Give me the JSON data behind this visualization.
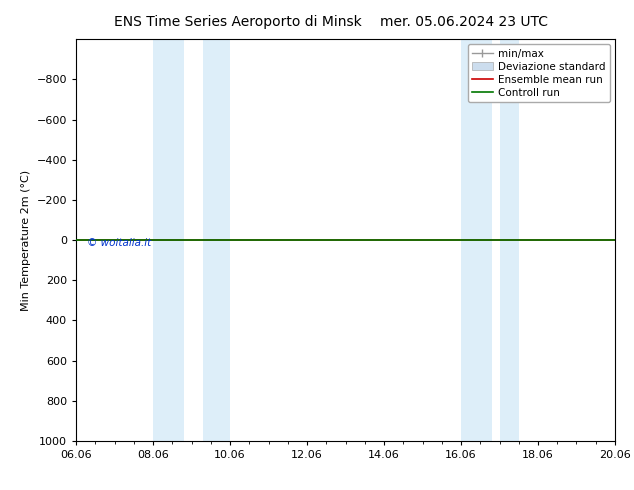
{
  "title_left": "ENS Time Series Aeroporto di Minsk",
  "title_right": "mer. 05.06.2024 23 UTC",
  "ylabel": "Min Temperature 2m (°C)",
  "xlabel_ticks": [
    "06.06",
    "08.06",
    "10.06",
    "12.06",
    "14.06",
    "16.06",
    "18.06",
    "20.06"
  ],
  "xlim": [
    0,
    14
  ],
  "ylim": [
    1000,
    -1000
  ],
  "yticks": [
    -800,
    -600,
    -400,
    -200,
    0,
    200,
    400,
    600,
    800,
    1000
  ],
  "bg_color": "#ffffff",
  "plot_bg_color": "#ffffff",
  "shaded_bands": [
    {
      "x_start": 2.0,
      "x_end": 2.8
    },
    {
      "x_start": 3.3,
      "x_end": 4.0
    },
    {
      "x_start": 10.0,
      "x_end": 10.8
    },
    {
      "x_start": 11.0,
      "x_end": 11.5
    }
  ],
  "shaded_color": "#ddeef9",
  "green_line_y": 0,
  "red_line_y": 0,
  "watermark": "© woitalia.it",
  "watermark_color": "#0033cc",
  "legend_entries": [
    {
      "label": "min/max",
      "color": "#999999",
      "lw": 1.0
    },
    {
      "label": "Deviazione standard",
      "color": "#ccddee",
      "lw": 6
    },
    {
      "label": "Ensemble mean run",
      "color": "#cc0000",
      "lw": 1.2
    },
    {
      "label": "Controll run",
      "color": "#007700",
      "lw": 1.2
    }
  ],
  "title_fontsize": 10,
  "axis_fontsize": 8,
  "tick_fontsize": 8,
  "legend_fontsize": 7.5
}
